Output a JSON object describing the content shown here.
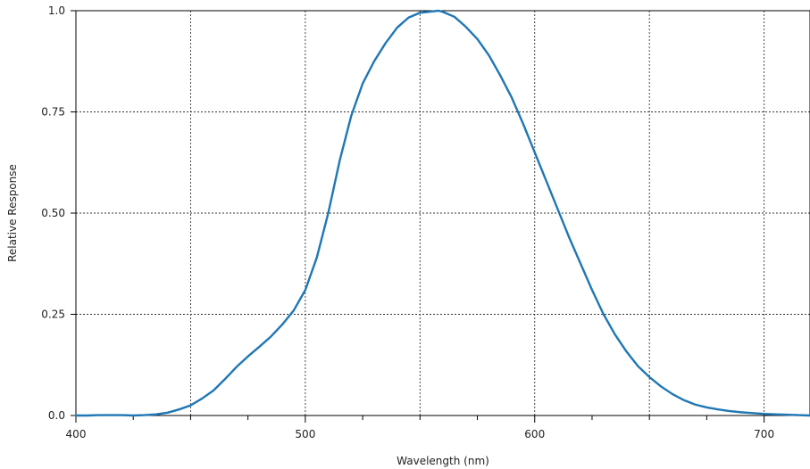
{
  "chart_data": {
    "type": "line",
    "xlabel": "Wavelength (nm)",
    "ylabel": "Relative Response",
    "xlim": [
      400,
      720
    ],
    "ylim": [
      0,
      1.0
    ],
    "x_ticks": [
      400,
      500,
      600,
      700
    ],
    "x_tick_labels": [
      "400",
      "500",
      "600",
      "700"
    ],
    "x_minor_ticks": [
      425,
      450,
      475,
      525,
      550,
      575,
      625,
      650,
      675
    ],
    "y_ticks": [
      0,
      0.25,
      0.5,
      0.75,
      1.0
    ],
    "y_tick_labels": [
      "0.0",
      "0.25",
      "0.50",
      "0.75",
      "1.0"
    ],
    "x_grid": [
      450,
      500,
      550,
      600,
      650,
      700
    ],
    "grid": true,
    "line_color": "#1f77b4",
    "series": [
      {
        "x": [
          400,
          405,
          410,
          415,
          420,
          425,
          430,
          435,
          440,
          445,
          450,
          455,
          460,
          465,
          470,
          475,
          480,
          485,
          490,
          495,
          500,
          505,
          510,
          515,
          520,
          525,
          530,
          535,
          540,
          545,
          550,
          555,
          558,
          560,
          565,
          570,
          575,
          580,
          585,
          590,
          595,
          600,
          605,
          610,
          615,
          620,
          625,
          630,
          635,
          640,
          645,
          650,
          655,
          660,
          665,
          670,
          675,
          680,
          685,
          690,
          695,
          700,
          705,
          710,
          715,
          720
        ],
        "y": [
          0.0,
          0.0,
          0.001,
          0.001,
          0.001,
          0.0,
          0.001,
          0.003,
          0.007,
          0.015,
          0.025,
          0.042,
          0.062,
          0.09,
          0.12,
          0.146,
          0.17,
          0.195,
          0.225,
          0.26,
          0.31,
          0.39,
          0.5,
          0.63,
          0.74,
          0.82,
          0.875,
          0.92,
          0.958,
          0.983,
          0.995,
          0.998,
          1.0,
          0.997,
          0.985,
          0.96,
          0.93,
          0.89,
          0.84,
          0.785,
          0.72,
          0.65,
          0.58,
          0.51,
          0.44,
          0.375,
          0.31,
          0.25,
          0.2,
          0.158,
          0.122,
          0.095,
          0.072,
          0.053,
          0.038,
          0.027,
          0.02,
          0.015,
          0.011,
          0.008,
          0.006,
          0.004,
          0.003,
          0.002,
          0.001,
          0.0
        ]
      }
    ]
  }
}
